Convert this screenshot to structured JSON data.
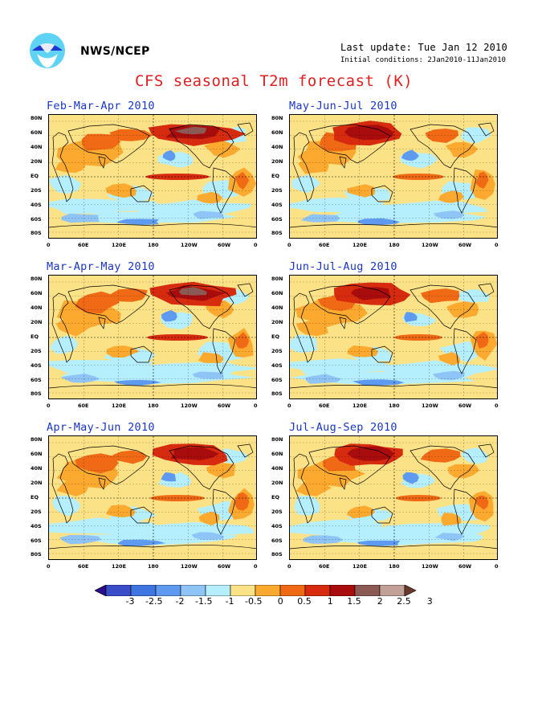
{
  "header": {
    "agency": "NWS/NCEP",
    "last_update": "Last update: Tue Jan 12 2010",
    "initial_conditions": "Initial conditions: 2Jan2010-11Jan2010",
    "title": "CFS seasonal T2m forecast (K)"
  },
  "logo": {
    "name": "noaa-logo",
    "text": "NOAA"
  },
  "panels": [
    {
      "label": "Feb-Mar-Apr 2010",
      "warmth": 0.75
    },
    {
      "label": "May-Jun-Jul 2010",
      "warmth": 0.55
    },
    {
      "label": "Mar-Apr-May 2010",
      "warmth": 0.7
    },
    {
      "label": "Jun-Jul-Aug 2010",
      "warmth": 0.5
    },
    {
      "label": "Apr-May-Jun 2010",
      "warmth": 0.6
    },
    {
      "label": "Jul-Aug-Sep 2010",
      "warmth": 0.45
    }
  ],
  "lat_ticks": [
    "80N",
    "60N",
    "40N",
    "20N",
    "EQ",
    "20S",
    "40S",
    "60S",
    "80S"
  ],
  "lon_ticks": [
    "0",
    "60E",
    "120E",
    "180",
    "120W",
    "60W",
    "0"
  ],
  "colorbar": {
    "levels": [
      "-3",
      "-2.5",
      "-2",
      "-1.5",
      "-1",
      "-0.5",
      "0",
      "0.5",
      "1",
      "1.5",
      "2",
      "2.5",
      "3"
    ],
    "colors": [
      "#2a0e8c",
      "#3a4cc8",
      "#3f75e0",
      "#5e9bf0",
      "#8ec4f6",
      "#b5eefd",
      "#fce287",
      "#fbaa2f",
      "#f06a16",
      "#d62b0e",
      "#a80c0c",
      "#8c5a54",
      "#c0a097",
      "#6b3a2a"
    ]
  },
  "colors": {
    "title_red": "#e02020",
    "panel_title_blue": "#1a36c8",
    "ocean_neutral": "#fce287"
  }
}
